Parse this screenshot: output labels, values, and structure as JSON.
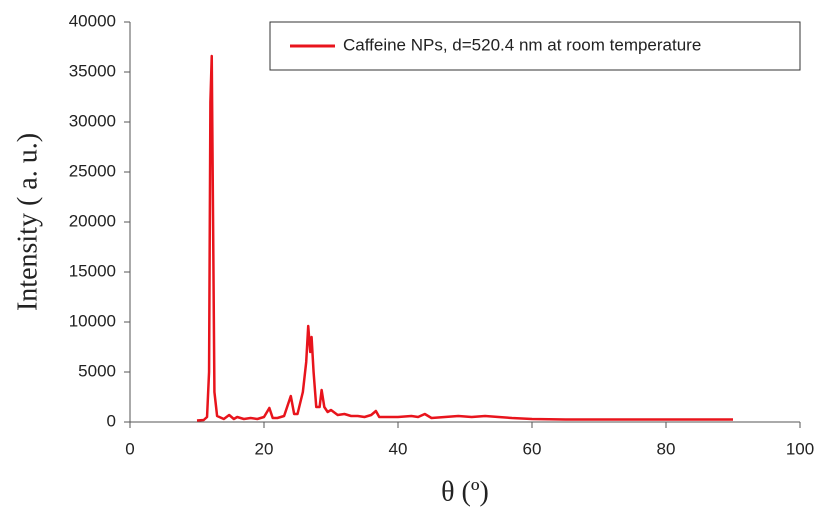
{
  "chart_data": {
    "type": "line",
    "x_label": "θ (º)",
    "y_label": "Intensity ( a. u.)",
    "x": [
      10,
      11,
      11.5,
      11.8,
      12,
      12.2,
      12.4,
      12.6,
      13,
      14,
      14.8,
      15.5,
      16,
      17,
      18,
      19,
      20,
      20.8,
      21.3,
      22,
      23,
      24,
      24.5,
      25,
      25.8,
      26.3,
      26.6,
      26.9,
      27.1,
      27.4,
      27.8,
      28.3,
      28.6,
      29,
      29.5,
      30,
      31,
      32,
      33,
      34,
      35,
      36,
      36.7,
      37.2,
      38,
      40,
      42,
      43,
      44,
      45,
      47,
      49,
      51,
      53,
      55,
      57,
      60,
      65,
      70,
      75,
      80,
      85,
      90
    ],
    "series": [
      {
        "name": "Caffeine NPs, d=520.4 nm at room temperature",
        "color": "#e8141c",
        "values": [
          150,
          200,
          500,
          5000,
          32000,
          36600,
          20000,
          3000,
          600,
          300,
          700,
          300,
          500,
          300,
          400,
          300,
          500,
          1400,
          400,
          400,
          600,
          2600,
          800,
          800,
          3000,
          6000,
          9600,
          7000,
          8500,
          5000,
          1500,
          1500,
          3200,
          1500,
          1000,
          1200,
          700,
          800,
          600,
          600,
          500,
          700,
          1100,
          500,
          500,
          500,
          600,
          500,
          800,
          400,
          500,
          600,
          500,
          600,
          500,
          400,
          300,
          250,
          250,
          250,
          250,
          250,
          250
        ]
      }
    ],
    "xlim": [
      0,
      100
    ],
    "xticks": [
      0,
      20,
      40,
      60,
      80,
      100
    ],
    "ylim": [
      0,
      40000
    ],
    "yticks": [
      0,
      5000,
      10000,
      15000,
      20000,
      25000,
      30000,
      35000,
      40000
    ],
    "grid": false,
    "legend": "top-right"
  }
}
